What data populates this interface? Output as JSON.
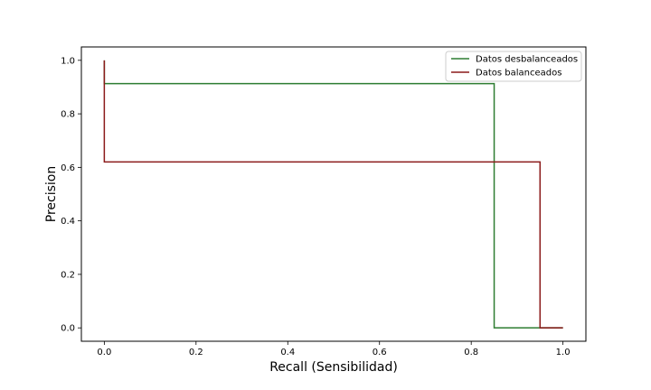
{
  "chart_data": {
    "type": "line",
    "xlabel": "Recall (Sensibilidad)",
    "ylabel": "Precision",
    "xlim": [
      -0.05,
      1.05
    ],
    "ylim": [
      -0.05,
      1.05
    ],
    "xticks": [
      0.0,
      0.2,
      0.4,
      0.6,
      0.8,
      1.0
    ],
    "yticks": [
      0.0,
      0.2,
      0.4,
      0.6,
      0.8,
      1.0
    ],
    "grid": false,
    "legend_position": "top-right",
    "series": [
      {
        "name": "Datos desbalanceados",
        "color": "#2e7d32",
        "drawstyle": "steps-post",
        "x": [
          0.0,
          0.0,
          0.85,
          0.85,
          1.0
        ],
        "y": [
          1.0,
          0.913,
          0.913,
          0.0,
          0.0
        ]
      },
      {
        "name": "Datos balanceados",
        "color": "#8b1a1a",
        "drawstyle": "steps-post",
        "x": [
          0.0,
          0.0,
          0.95,
          0.95,
          1.0
        ],
        "y": [
          1.0,
          0.62,
          0.62,
          0.0,
          0.0
        ]
      }
    ]
  }
}
